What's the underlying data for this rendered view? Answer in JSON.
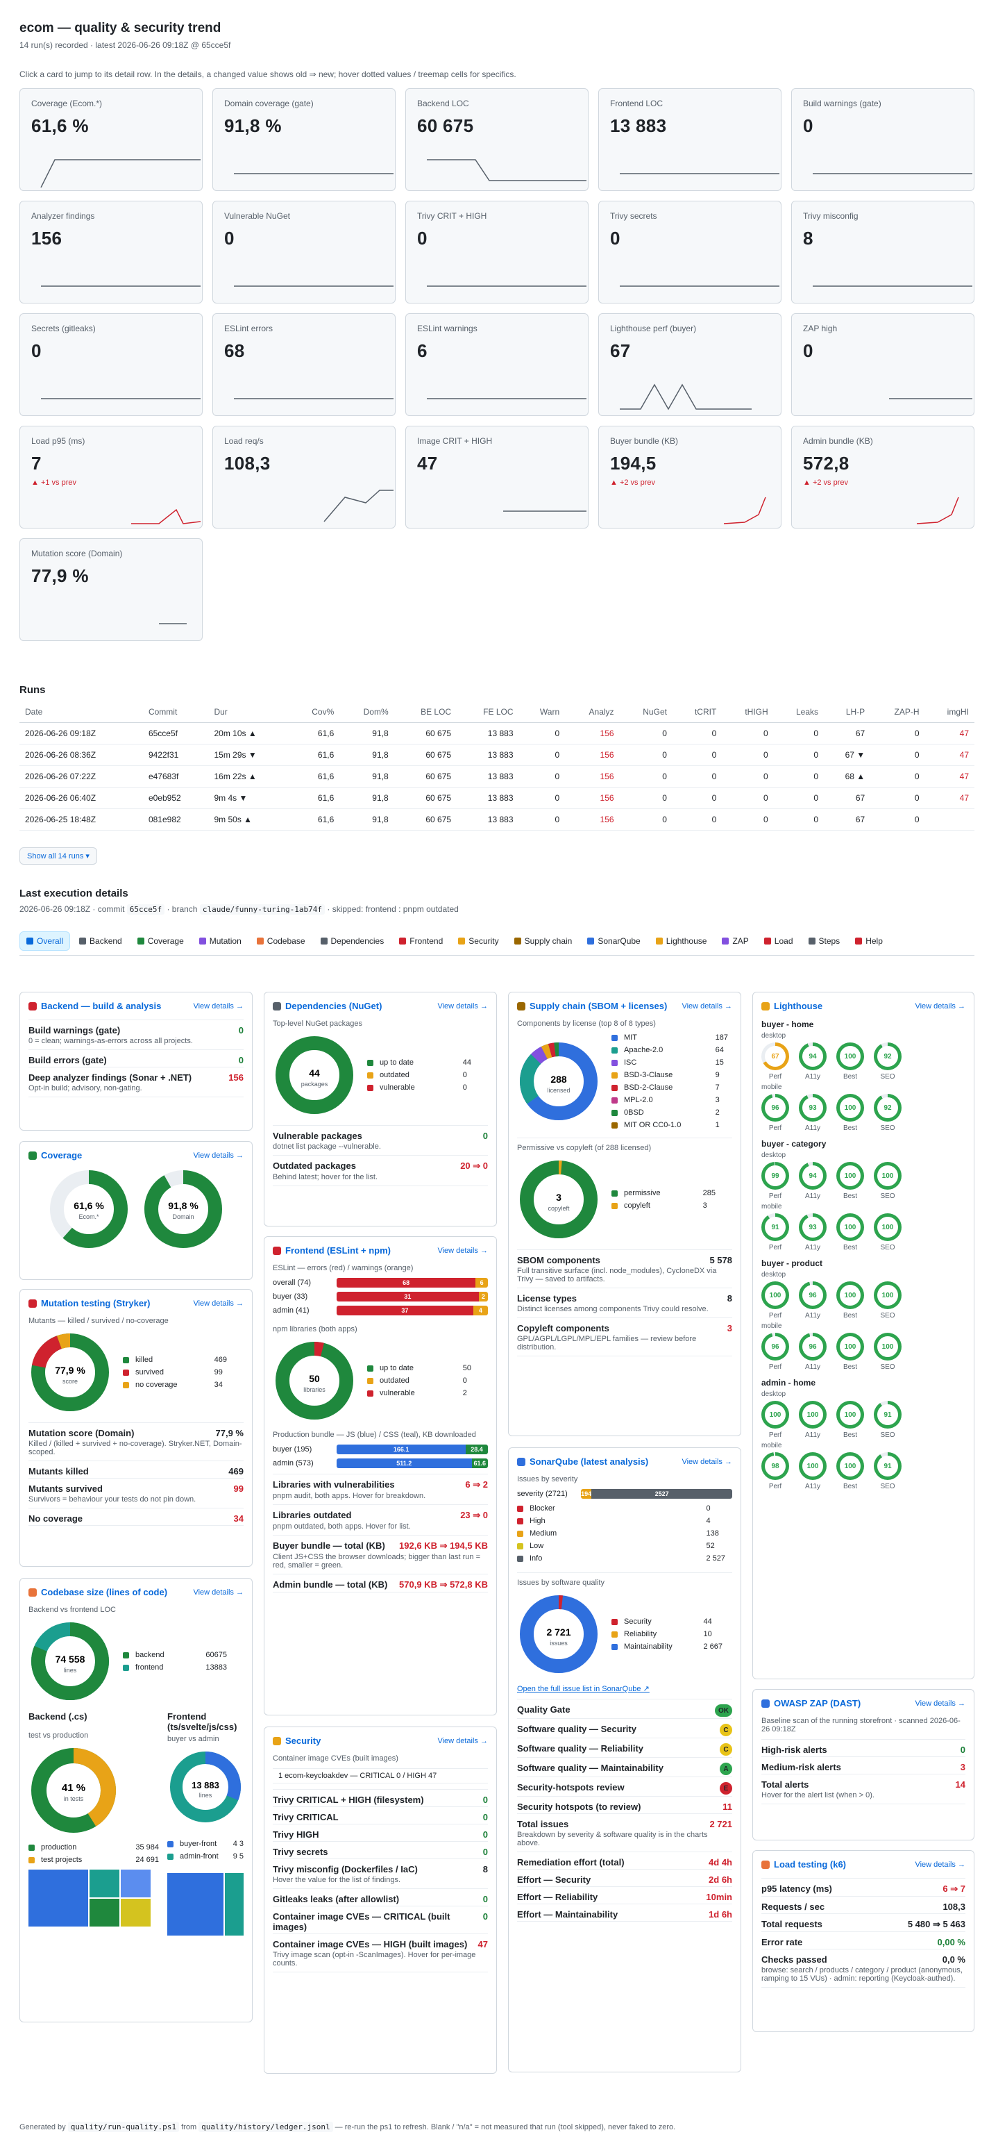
{
  "header": {
    "title": "ecom — quality & security trend",
    "subtitle": "14 run(s) recorded · latest 2026-06-26 09:18Z @ 65cce5f",
    "note": "Click a card to jump to its detail row. In the details, a changed value shows old ⇒ new; hover dotted values / treemap cells for specifics."
  },
  "kpis": [
    {
      "label": "Coverage (Ecom.*)",
      "value": "61,6 %",
      "delta": ""
    },
    {
      "label": "Domain coverage (gate)",
      "value": "91,8 %",
      "delta": ""
    },
    {
      "label": "Backend LOC",
      "value": "60 675",
      "delta": ""
    },
    {
      "label": "Frontend LOC",
      "value": "13 883",
      "delta": ""
    },
    {
      "label": "Build warnings (gate)",
      "value": "0",
      "delta": ""
    },
    {
      "label": "Analyzer findings",
      "value": "156",
      "delta": ""
    },
    {
      "label": "Vulnerable NuGet",
      "value": "0",
      "delta": ""
    },
    {
      "label": "Trivy CRIT + HIGH",
      "value": "0",
      "delta": ""
    },
    {
      "label": "Trivy secrets",
      "value": "0",
      "delta": ""
    },
    {
      "label": "Trivy misconfig",
      "value": "8",
      "delta": ""
    },
    {
      "label": "Secrets (gitleaks)",
      "value": "0",
      "delta": ""
    },
    {
      "label": "ESLint errors",
      "value": "68",
      "delta": ""
    },
    {
      "label": "ESLint warnings",
      "value": "6",
      "delta": ""
    },
    {
      "label": "Lighthouse perf (buyer)",
      "value": "67",
      "delta": ""
    },
    {
      "label": "ZAP high",
      "value": "0",
      "delta": ""
    },
    {
      "label": "Load p95 (ms)",
      "value": "7",
      "delta": "▲ +1 vs prev"
    },
    {
      "label": "Load req/s",
      "value": "108,3",
      "delta": ""
    },
    {
      "label": "Image CRIT + HIGH",
      "value": "47",
      "delta": ""
    },
    {
      "label": "Buyer bundle (KB)",
      "value": "194,5",
      "delta": "▲ +2 vs prev"
    },
    {
      "label": "Admin bundle (KB)",
      "value": "572,8",
      "delta": "▲ +2 vs prev"
    },
    {
      "label": "Mutation score (Domain)",
      "value": "77,9 %",
      "delta": ""
    }
  ],
  "runs": {
    "title": "Runs",
    "columns": [
      "Date",
      "Commit",
      "Dur",
      "Cov%",
      "Dom%",
      "BE LOC",
      "FE LOC",
      "Warn",
      "Analyz",
      "NuGet",
      "tCRIT",
      "tHIGH",
      "Leaks",
      "LH-P",
      "ZAP-H",
      "imgHI"
    ],
    "rows": [
      [
        "2026-06-26 09:18Z",
        "65cce5f",
        "20m 10s ▲",
        "61,6",
        "91,8",
        "60 675",
        "13 883",
        "0",
        "156",
        "0",
        "0",
        "0",
        "0",
        "67",
        "0",
        "47"
      ],
      [
        "2026-06-26 08:36Z",
        "9422f31",
        "15m 29s ▼",
        "61,6",
        "91,8",
        "60 675",
        "13 883",
        "0",
        "156",
        "0",
        "0",
        "0",
        "0",
        "67 ▼",
        "0",
        "47"
      ],
      [
        "2026-06-26 07:22Z",
        "e47683f",
        "16m 22s ▲",
        "61,6",
        "91,8",
        "60 675",
        "13 883",
        "0",
        "156",
        "0",
        "0",
        "0",
        "0",
        "68 ▲",
        "0",
        "47"
      ],
      [
        "2026-06-26 06:40Z",
        "e0eb952",
        "9m 4s ▼",
        "61,6",
        "91,8",
        "60 675",
        "13 883",
        "0",
        "156",
        "0",
        "0",
        "0",
        "0",
        "67",
        "0",
        "47"
      ],
      [
        "2026-06-25 18:48Z",
        "081e982",
        "9m 50s ▲",
        "61,6",
        "91,8",
        "60 675",
        "13 883",
        "0",
        "156",
        "0",
        "0",
        "0",
        "0",
        "67",
        "0",
        ""
      ]
    ],
    "show_all": "Show all 14 runs ▾"
  },
  "last": {
    "title": "Last execution details",
    "meta_a": "2026-06-26 09:18Z · commit",
    "commit": "65cce5f",
    "meta_b": "· branch",
    "branch": "claude/funny-turing-1ab74f",
    "meta_c": "· skipped: frontend : pnpm outdated"
  },
  "tabs": [
    "Overall",
    "Backend",
    "Coverage",
    "Mutation",
    "Codebase",
    "Dependencies",
    "Frontend",
    "Security",
    "Supply chain",
    "SonarQube",
    "Lighthouse",
    "ZAP",
    "Load",
    "Steps",
    "Help"
  ],
  "view_details": "View details →",
  "backend": {
    "title": "Backend — build & analysis",
    "rows": [
      {
        "k": "Build warnings (gate)",
        "v": "0",
        "d": "0 = clean; warnings-as-errors across all projects."
      },
      {
        "k": "Build errors (gate)",
        "v": "0",
        "d": ""
      },
      {
        "k": "Deep analyzer findings (Sonar + .NET)",
        "v": "156",
        "d": "Opt-in build; advisory, non-gating."
      }
    ]
  },
  "coverage": {
    "title": "Coverage",
    "a_val": "61,6 %",
    "a_lbl": "Ecom.*",
    "b_val": "91,8 %",
    "b_lbl": "Domain"
  },
  "mutation": {
    "title": "Mutation testing (Stryker)",
    "sub": "Mutants — killed / survived / no-coverage",
    "center": "77,9 %",
    "center_lbl": "score",
    "legend": [
      {
        "n": "killed",
        "v": "469",
        "c": "#1f883d"
      },
      {
        "n": "survived",
        "v": "99",
        "c": "#cf222e"
      },
      {
        "n": "no coverage",
        "v": "34",
        "c": "#e8a317"
      }
    ],
    "rows": [
      {
        "k": "Mutation score (Domain)",
        "v": "77,9 %",
        "d": "Killed / (killed + survived + no-coverage). Stryker.NET, Domain-scoped."
      },
      {
        "k": "Mutants killed",
        "v": "469",
        "d": ""
      },
      {
        "k": "Mutants survived",
        "v": "99",
        "d": "Survivors = behaviour your tests do not pin down."
      },
      {
        "k": "No coverage",
        "v": "34",
        "d": ""
      }
    ]
  },
  "codebase": {
    "title": "Codebase size (lines of code)",
    "sub": "Backend vs frontend LOC",
    "center": "74 558",
    "center_lbl": "lines",
    "legend": [
      {
        "n": "backend",
        "v": "60675",
        "c": "#1f883d"
      },
      {
        "n": "frontend",
        "v": "13883",
        "c": "#1b9e8f"
      }
    ],
    "be_title": "Backend (.cs)",
    "be_sub": "test vs production",
    "be_center": "41 %",
    "be_lbl": "in tests",
    "be_legend": [
      {
        "n": "production",
        "v": "35 984",
        "c": "#1f883d"
      },
      {
        "n": "test projects",
        "v": "24 691",
        "c": "#e8a317"
      }
    ],
    "fe_title": "Frontend (ts/svelte/js/css)",
    "fe_sub": "buyer vs admin",
    "fe_center": "13 883",
    "fe_lbl": "lines",
    "fe_legend": [
      {
        "n": "buyer-front",
        "v": "4 3"
      },
      {
        "n": "admin-front",
        "v": "9 5"
      }
    ]
  },
  "deps": {
    "title": "Dependencies (NuGet)",
    "sub": "Top-level NuGet packages",
    "center": "44",
    "center_lbl": "packages",
    "legend": [
      {
        "n": "up to date",
        "v": "44",
        "c": "#1f883d"
      },
      {
        "n": "outdated",
        "v": "0",
        "c": "#e8a317"
      },
      {
        "n": "vulnerable",
        "v": "0",
        "c": "#cf222e"
      }
    ],
    "rows": [
      {
        "k": "Vulnerable packages",
        "v": "0",
        "d": "dotnet list package --vulnerable."
      },
      {
        "k": "Outdated packages",
        "v": "20 ⇒ 0",
        "d": "Behind latest; hover for the list."
      }
    ]
  },
  "frontend": {
    "title": "Frontend (ESLint + npm)",
    "sub": "ESLint — errors (red) / warnings (orange)",
    "bars": [
      {
        "n": "overall (74)",
        "e": "68",
        "w": "6"
      },
      {
        "n": "buyer (33)",
        "e": "31",
        "w": "2"
      },
      {
        "n": "admin (41)",
        "e": "37",
        "w": "4"
      }
    ],
    "npm_sub": "npm libraries (both apps)",
    "center": "50",
    "center_lbl": "libraries",
    "legend": [
      {
        "n": "up to date",
        "v": "50",
        "c": "#1f883d"
      },
      {
        "n": "outdated",
        "v": "0",
        "c": "#e8a317"
      },
      {
        "n": "vulnerable",
        "v": "2",
        "c": "#cf222e"
      }
    ],
    "bundle_sub": "Production bundle — JS (blue) / CSS (teal), KB downloaded",
    "bundles": [
      {
        "n": "buyer (195)",
        "js": "166.1",
        "css": "28.4"
      },
      {
        "n": "admin (573)",
        "js": "511.2",
        "css": "61.6"
      }
    ],
    "rows": [
      {
        "k": "Libraries with vulnerabilities",
        "v": "6 ⇒ 2",
        "d": "pnpm audit, both apps. Hover for breakdown."
      },
      {
        "k": "Libraries outdated",
        "v": "23 ⇒ 0",
        "d": "pnpm outdated, both apps. Hover for list."
      },
      {
        "k": "Buyer bundle — total (KB)",
        "v": "192,6 KB ⇒ 194,5 KB",
        "d": "Client JS+CSS the browser downloads; bigger than last run = red, smaller = green."
      },
      {
        "k": "Admin bundle — total (KB)",
        "v": "570,9 KB ⇒ 572,8 KB",
        "d": ""
      }
    ]
  },
  "security": {
    "title": "Security",
    "sub": "Container image CVEs (built images)",
    "img": "1  ecom-keycloakdev — CRITICAL 0 / HIGH 47",
    "rows": [
      {
        "k": "Trivy CRITICAL + HIGH (filesystem)",
        "v": "0",
        "d": ""
      },
      {
        "k": "Trivy CRITICAL",
        "v": "0",
        "d": ""
      },
      {
        "k": "Trivy HIGH",
        "v": "0",
        "d": ""
      },
      {
        "k": "Trivy secrets",
        "v": "0",
        "d": ""
      },
      {
        "k": "Trivy misconfig (Dockerfiles / IaC)",
        "v": "8",
        "d": "Hover the value for the list of findings."
      },
      {
        "k": "Gitleaks leaks (after allowlist)",
        "v": "0",
        "d": ""
      },
      {
        "k": "Container image CVEs — CRITICAL (built images)",
        "v": "0",
        "d": ""
      },
      {
        "k": "Container image CVEs — HIGH (built images)",
        "v": "47",
        "d": "Trivy image scan (opt-in -ScanImages). Hover for per-image counts."
      }
    ]
  },
  "supply": {
    "title": "Supply chain (SBOM + licenses)",
    "sub": "Components by license (top 8 of 8 types)",
    "center": "288",
    "center_lbl": "licensed",
    "legend": [
      {
        "n": "MIT",
        "v": "187",
        "c": "#2f6fdd"
      },
      {
        "n": "Apache-2.0",
        "v": "64",
        "c": "#1b9e8f"
      },
      {
        "n": "ISC",
        "v": "15",
        "c": "#8250df"
      },
      {
        "n": "BSD-3-Clause",
        "v": "9",
        "c": "#e8a317"
      },
      {
        "n": "BSD-2-Clause",
        "v": "7",
        "c": "#cf222e"
      },
      {
        "n": "MPL-2.0",
        "v": "3",
        "c": "#bf3989"
      },
      {
        "n": "0BSD",
        "v": "2",
        "c": "#1f883d"
      },
      {
        "n": "MIT OR CC0-1.0",
        "v": "1",
        "c": "#9a6700"
      }
    ],
    "perm_sub": "Permissive vs copyleft (of 288 licensed)",
    "perm_center": "3",
    "perm_lbl": "copyleft",
    "perm_legend": [
      {
        "n": "permissive",
        "v": "285",
        "c": "#1f883d"
      },
      {
        "n": "copyleft",
        "v": "3",
        "c": "#e8a317"
      }
    ],
    "rows": [
      {
        "k": "SBOM components",
        "v": "5 578",
        "d": "Full transitive surface (incl. node_modules), CycloneDX via Trivy — saved to artifacts."
      },
      {
        "k": "License types",
        "v": "8",
        "d": "Distinct licenses among components Trivy could resolve."
      },
      {
        "k": "Copyleft components",
        "v": "3",
        "d": "GPL/AGPL/LGPL/MPL/EPL families — review before distribution."
      }
    ]
  },
  "sonar": {
    "title": "SonarQube (latest analysis)",
    "sev_sub": "Issues by severity",
    "sev_lbl": "severity (2721)",
    "sev_a": "194",
    "sev_b": "2527",
    "sev": [
      {
        "n": "Blocker",
        "v": "0",
        "c": "#cf222e"
      },
      {
        "n": "High",
        "v": "4",
        "c": "#cf222e"
      },
      {
        "n": "Medium",
        "v": "138",
        "c": "#e8a317"
      },
      {
        "n": "Low",
        "v": "52",
        "c": "#d4c31f"
      },
      {
        "n": "Info",
        "v": "2 527",
        "c": "#57606a"
      }
    ],
    "sq_sub": "Issues by software quality",
    "center": "2 721",
    "center_lbl": "issues",
    "sq": [
      {
        "n": "Security",
        "v": "44",
        "c": "#cf222e"
      },
      {
        "n": "Reliability",
        "v": "10",
        "c": "#e8a317"
      },
      {
        "n": "Maintainability",
        "v": "2 667",
        "c": "#2f6fdd"
      }
    ],
    "link": "Open the full issue list in SonarQube ↗",
    "rows": [
      {
        "k": "Quality Gate",
        "v": "OK",
        "t": "badge",
        "c": "#2da44e"
      },
      {
        "k": "Software quality — Security",
        "v": "C",
        "t": "badge",
        "c": "#e8c317"
      },
      {
        "k": "Software quality — Reliability",
        "v": "C",
        "t": "badge",
        "c": "#e8c317"
      },
      {
        "k": "Software quality — Maintainability",
        "v": "A",
        "t": "badge",
        "c": "#2da44e"
      },
      {
        "k": "Security-hotspots review",
        "v": "E",
        "t": "badge",
        "c": "#cf222e"
      },
      {
        "k": "Security hotspots (to review)",
        "v": "11",
        "t": "red",
        "d": ""
      },
      {
        "k": "Total issues",
        "v": "2 721",
        "t": "red",
        "d": "Breakdown by severity & software quality is in the charts above."
      },
      {
        "k": "Remediation effort (total)",
        "v": "4d 4h",
        "t": "red",
        "d": ""
      },
      {
        "k": "Effort — Security",
        "v": "2d 6h",
        "t": "red",
        "d": ""
      },
      {
        "k": "Effort — Reliability",
        "v": "10min",
        "t": "red",
        "d": ""
      },
      {
        "k": "Effort — Maintainability",
        "v": "1d 6h",
        "t": "red",
        "d": ""
      }
    ]
  },
  "lighthouse": {
    "title": "Lighthouse",
    "cols": [
      "Perf",
      "A11y",
      "Best",
      "SEO"
    ],
    "pages": [
      {
        "name": "buyer - home",
        "desktop": [
          "67",
          "94",
          "100",
          "92"
        ],
        "mobile": [
          "96",
          "93",
          "100",
          "92"
        ]
      },
      {
        "name": "buyer - category",
        "desktop": [
          "99",
          "94",
          "100",
          "100"
        ],
        "mobile": [
          "91",
          "93",
          "100",
          "100"
        ]
      },
      {
        "name": "buyer - product",
        "desktop": [
          "100",
          "96",
          "100",
          "100"
        ],
        "mobile": [
          "96",
          "96",
          "100",
          "100"
        ]
      },
      {
        "name": "admin - home",
        "desktop": [
          "100",
          "100",
          "100",
          "91"
        ],
        "mobile": [
          "98",
          "100",
          "100",
          "91"
        ]
      }
    ],
    "desktop": "desktop",
    "mobile": "mobile"
  },
  "zap": {
    "title": "OWASP ZAP (DAST)",
    "sub": "Baseline scan of the running storefront · scanned 2026-06-26 09:18Z",
    "rows": [
      {
        "k": "High-risk alerts",
        "v": "0",
        "d": ""
      },
      {
        "k": "Medium-risk alerts",
        "v": "3",
        "d": ""
      },
      {
        "k": "Total alerts",
        "v": "14",
        "d": "Hover for the alert list (when > 0)."
      }
    ]
  },
  "load": {
    "title": "Load testing (k6)",
    "rows": [
      {
        "k": "p95 latency (ms)",
        "v": "6 ⇒ 7",
        "d": ""
      },
      {
        "k": "Requests / sec",
        "v": "108,3",
        "d": ""
      },
      {
        "k": "Total requests",
        "v": "5 480 ⇒ 5 463",
        "d": ""
      },
      {
        "k": "Error rate",
        "v": "0,00 %",
        "d": ""
      },
      {
        "k": "Checks passed",
        "v": "0,0 %",
        "d": "browse: search / products / category / product (anonymous, ramping to 15 VUs) · admin: reporting (Keycloak-authed)."
      }
    ]
  },
  "footer": {
    "a": "Generated by",
    "script": "quality/run-quality.ps1",
    "b": "from",
    "ledger": "quality/history/ledger.jsonl",
    "c": "— re-run the ps1 to refresh. Blank / \"n/a\" = not measured that run (tool skipped), never faked to zero."
  },
  "colors": {
    "accent": "#0969da",
    "green": "#1f883d",
    "red": "#cf222e",
    "orange": "#e8a317",
    "teal": "#1b9e8f",
    "blue": "#2f6fdd"
  }
}
